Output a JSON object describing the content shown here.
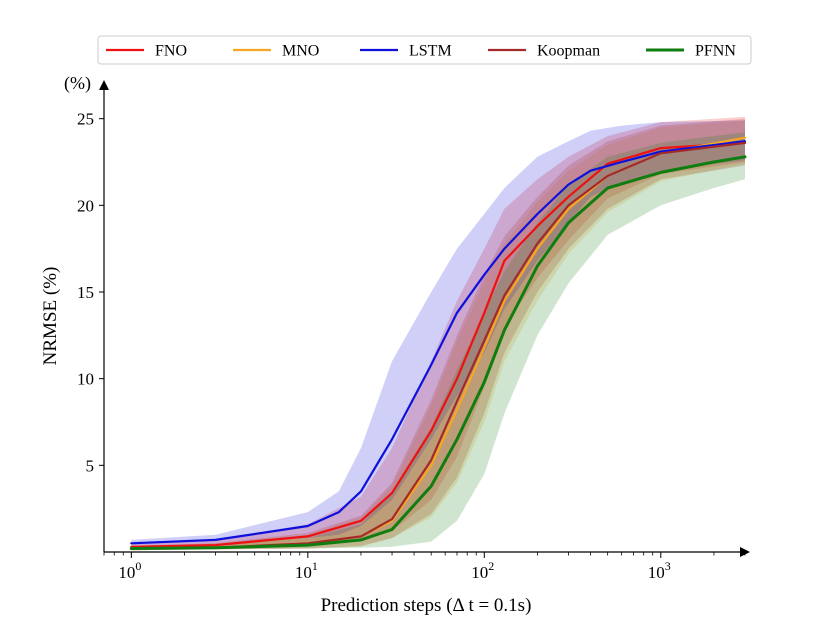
{
  "chart_data": {
    "type": "line",
    "title": "",
    "xlabel": "Prediction steps (Δ t = 0.1s)",
    "ylabel": "NRMSE (%)",
    "y_unit_label": "(%)",
    "xscale": "log",
    "xlim": [
      0.7,
      3000
    ],
    "ylim": [
      0,
      27
    ],
    "x_ticks": [
      {
        "value": 1,
        "base": "10",
        "exp": "0"
      },
      {
        "value": 10,
        "base": "10",
        "exp": "1"
      },
      {
        "value": 100,
        "base": "10",
        "exp": "2"
      },
      {
        "value": 1000,
        "base": "10",
        "exp": "3"
      }
    ],
    "y_ticks": [
      5,
      10,
      15,
      20,
      25
    ],
    "legend_position": "top",
    "series": [
      {
        "name": "FNO",
        "color": "#ee1111",
        "x": [
          1,
          3,
          10,
          20,
          30,
          50,
          70,
          100,
          130,
          200,
          300,
          500,
          1000,
          3000
        ],
        "y": [
          0.3,
          0.4,
          0.9,
          1.8,
          3.4,
          7.0,
          10.0,
          13.8,
          16.8,
          18.8,
          20.5,
          22.4,
          23.3,
          23.6
        ],
        "lower": [
          0.2,
          0.25,
          0.4,
          0.7,
          1.2,
          3.0,
          5.5,
          9.5,
          13.0,
          15.8,
          18.0,
          20.4,
          21.8,
          22.5
        ],
        "upper": [
          0.45,
          0.7,
          1.6,
          3.2,
          6.0,
          11.0,
          14.5,
          17.5,
          19.8,
          21.5,
          22.8,
          24.0,
          24.8,
          25.1
        ]
      },
      {
        "name": "MNO",
        "color": "#f5a623",
        "x": [
          1,
          3,
          10,
          20,
          30,
          50,
          70,
          100,
          130,
          200,
          300,
          500,
          1000,
          3000
        ],
        "y": [
          0.2,
          0.25,
          0.5,
          0.9,
          1.8,
          5.0,
          8.2,
          11.8,
          14.5,
          17.5,
          19.8,
          21.7,
          23.0,
          23.9
        ],
        "lower": [
          0.1,
          0.15,
          0.2,
          0.3,
          0.8,
          2.0,
          4.0,
          7.5,
          11.0,
          14.5,
          17.2,
          19.6,
          21.4,
          22.4
        ],
        "upper": [
          0.35,
          0.5,
          1.0,
          2.0,
          3.8,
          8.5,
          12.2,
          15.6,
          17.8,
          20.2,
          22.0,
          23.5,
          24.5,
          24.9
        ]
      },
      {
        "name": "LSTM",
        "color": "#1010dd",
        "x": [
          1,
          3,
          10,
          15,
          20,
          30,
          50,
          70,
          100,
          130,
          200,
          300,
          400,
          600,
          1000,
          3000
        ],
        "y": [
          0.5,
          0.7,
          1.5,
          2.3,
          3.5,
          6.5,
          10.8,
          13.8,
          16.0,
          17.5,
          19.5,
          21.2,
          22.0,
          22.5,
          23.1,
          23.7
        ],
        "lower": [
          0.35,
          0.45,
          0.8,
          1.0,
          1.5,
          3.0,
          6.5,
          9.0,
          11.5,
          14.0,
          16.8,
          19.0,
          20.5,
          21.3,
          22.0,
          22.6
        ],
        "upper": [
          0.7,
          1.0,
          2.3,
          3.5,
          6.0,
          11.0,
          15.0,
          17.5,
          19.5,
          21.0,
          22.8,
          23.7,
          24.3,
          24.6,
          24.8,
          24.9
        ]
      },
      {
        "name": "Koopman",
        "color": "#a32a2a",
        "x": [
          1,
          3,
          10,
          20,
          30,
          50,
          70,
          100,
          130,
          200,
          300,
          500,
          1000,
          3000
        ],
        "y": [
          0.2,
          0.25,
          0.5,
          0.9,
          1.9,
          5.3,
          8.7,
          12.2,
          14.8,
          17.8,
          20.0,
          21.7,
          23.0,
          23.6
        ],
        "lower": [
          0.1,
          0.15,
          0.2,
          0.35,
          0.8,
          2.2,
          4.3,
          8.0,
          11.5,
          15.0,
          17.5,
          19.8,
          21.5,
          22.3
        ],
        "upper": [
          0.35,
          0.5,
          1.1,
          2.1,
          4.0,
          8.8,
          12.5,
          16.0,
          18.2,
          20.5,
          22.3,
          23.7,
          24.6,
          25.0
        ]
      },
      {
        "name": "PFNN",
        "color": "#0f7d0f",
        "x": [
          1,
          3,
          10,
          20,
          30,
          50,
          70,
          100,
          130,
          200,
          300,
          500,
          1000,
          2000,
          3000
        ],
        "y": [
          0.2,
          0.25,
          0.4,
          0.7,
          1.3,
          3.8,
          6.5,
          9.8,
          12.8,
          16.5,
          19.0,
          21.0,
          21.9,
          22.5,
          22.8
        ],
        "lower": [
          0.1,
          0.15,
          0.2,
          0.25,
          0.3,
          0.6,
          1.8,
          4.5,
          8.0,
          12.5,
          15.5,
          18.3,
          20.0,
          21.0,
          21.5
        ],
        "upper": [
          0.3,
          0.4,
          0.8,
          1.6,
          3.5,
          7.2,
          10.5,
          13.8,
          16.2,
          19.0,
          21.2,
          22.8,
          23.6,
          24.0,
          24.2
        ]
      }
    ]
  }
}
